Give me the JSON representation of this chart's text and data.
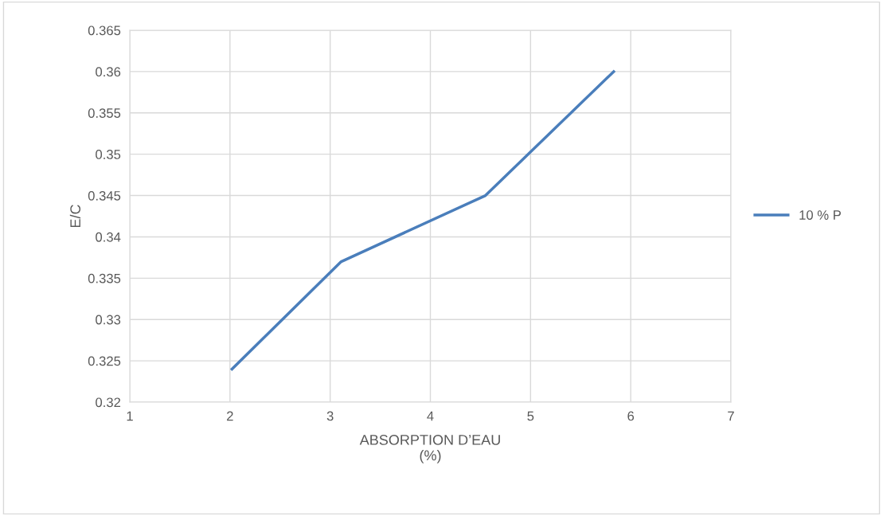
{
  "chart_data": {
    "type": "line",
    "xlabel": "ABSORPTION D’EAU\n(%)",
    "ylabel": "E/C",
    "series": [
      {
        "name": "10 % P",
        "color": "#4a7ebb",
        "x": [
          2.02,
          3.11,
          4.55,
          5.83
        ],
        "values": [
          0.324,
          0.337,
          0.345,
          0.36
        ]
      }
    ],
    "xlim": [
      1,
      7
    ],
    "xticks": [
      1,
      2,
      3,
      4,
      5,
      6,
      7
    ],
    "ylim": [
      0.32,
      0.365
    ],
    "yticks": [
      {
        "value": 0.32,
        "label": "0.32"
      },
      {
        "value": 0.325,
        "label": "0.325"
      },
      {
        "value": 0.33,
        "label": "0.33"
      },
      {
        "value": 0.335,
        "label": "0.335"
      },
      {
        "value": 0.34,
        "label": "0.34"
      },
      {
        "value": 0.345,
        "label": "0.345"
      },
      {
        "value": 0.35,
        "label": "0.35"
      },
      {
        "value": 0.355,
        "label": "0.355"
      },
      {
        "value": 0.36,
        "label": "0.36"
      },
      {
        "value": 0.365,
        "label": "0.365"
      }
    ],
    "grid": true,
    "legend": "right",
    "marker": "none",
    "line_style": "solid"
  }
}
